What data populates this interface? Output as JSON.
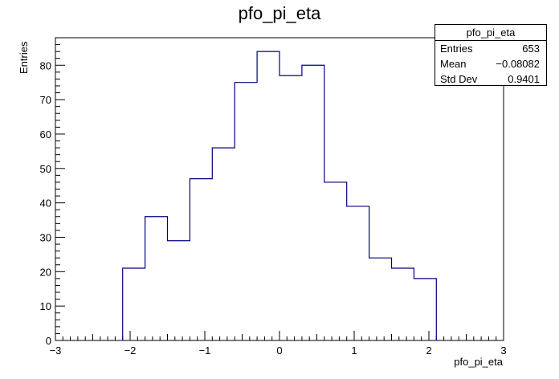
{
  "chart_data": {
    "type": "bar",
    "title": "pfo_pi_eta",
    "xlabel": "pfo_pi_eta",
    "ylabel": "Entries",
    "xlim": [
      -3,
      3
    ],
    "ylim": [
      0,
      88
    ],
    "x_ticks": [
      "−3",
      "−2",
      "−1",
      "0",
      "1",
      "2",
      "3"
    ],
    "y_ticks": [
      "0",
      "10",
      "20",
      "30",
      "40",
      "50",
      "60",
      "70",
      "80"
    ],
    "bin_edges": [
      -2.1,
      -1.8,
      -1.5,
      -1.2,
      -0.9,
      -0.6,
      -0.3,
      0.0,
      0.3,
      0.6,
      0.9,
      1.2,
      1.5,
      1.8,
      2.1
    ],
    "values": [
      21,
      36,
      29,
      47,
      56,
      75,
      84,
      77,
      80,
      46,
      39,
      24,
      21,
      18
    ],
    "line_color": "#000080",
    "stats_box": {
      "title": "pfo_pi_eta",
      "rows": [
        {
          "label": "Entries",
          "value": "653"
        },
        {
          "label": "Mean",
          "value": "−0.08082"
        },
        {
          "label": "Std Dev",
          "value": "0.9401"
        }
      ]
    }
  }
}
